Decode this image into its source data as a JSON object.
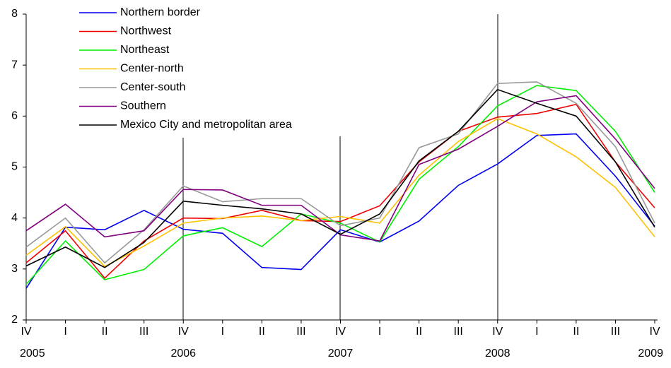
{
  "chart_data": {
    "type": "line",
    "categories": [
      "IV",
      "I",
      "II",
      "III",
      "IV",
      "I",
      "II",
      "III",
      "IV",
      "I",
      "II",
      "III",
      "IV",
      "I",
      "II",
      "III",
      "IV"
    ],
    "year_labels": [
      "2005",
      null,
      null,
      null,
      "2006",
      null,
      null,
      null,
      "2007",
      null,
      null,
      null,
      "2008",
      null,
      null,
      null,
      "2009"
    ],
    "ylim": [
      2,
      8
    ],
    "yticks": [
      2,
      3,
      4,
      5,
      6,
      7,
      8
    ],
    "series": [
      {
        "name": "Northern border",
        "color": "#0000ee",
        "values": [
          2.62,
          3.82,
          3.77,
          4.15,
          3.78,
          3.7,
          3.03,
          2.99,
          3.77,
          3.53,
          3.94,
          4.64,
          5.06,
          5.62,
          5.65,
          4.82,
          3.84
        ]
      },
      {
        "name": "Northwest",
        "color": "#ee0000",
        "values": [
          3.12,
          3.75,
          2.82,
          3.55,
          4.0,
          3.99,
          4.15,
          3.95,
          3.93,
          4.24,
          5.1,
          5.7,
          5.98,
          6.05,
          6.23,
          5.1,
          4.2
        ]
      },
      {
        "name": "Northeast",
        "color": "#00ee00",
        "values": [
          2.7,
          3.55,
          2.79,
          2.99,
          3.65,
          3.81,
          3.44,
          4.08,
          3.9,
          3.53,
          4.76,
          5.4,
          6.2,
          6.6,
          6.5,
          5.7,
          4.5
        ]
      },
      {
        "name": "Center-north",
        "color": "#ffc000",
        "values": [
          3.27,
          3.83,
          3.05,
          3.45,
          3.9,
          4.0,
          4.04,
          3.95,
          4.03,
          3.9,
          4.84,
          5.5,
          5.95,
          5.65,
          5.2,
          4.6,
          3.63
        ]
      },
      {
        "name": "Center-south",
        "color": "#999999",
        "values": [
          3.43,
          4.0,
          3.12,
          3.77,
          4.63,
          4.32,
          4.38,
          4.38,
          3.85,
          4.0,
          5.38,
          5.65,
          6.64,
          6.67,
          6.25,
          5.4,
          3.9
        ]
      },
      {
        "name": "Southern",
        "color": "#800080",
        "values": [
          3.75,
          4.27,
          3.63,
          3.75,
          4.56,
          4.55,
          4.25,
          4.25,
          3.67,
          3.55,
          5.05,
          5.35,
          5.8,
          6.28,
          6.4,
          5.55,
          4.58
        ]
      },
      {
        "name": "Mexico City and metropolitan area",
        "color": "#000000",
        "values": [
          3.06,
          3.43,
          3.03,
          3.52,
          4.33,
          4.25,
          4.18,
          4.08,
          3.68,
          4.08,
          5.12,
          5.7,
          6.52,
          6.25,
          6.0,
          5.1,
          3.82
        ]
      }
    ]
  }
}
